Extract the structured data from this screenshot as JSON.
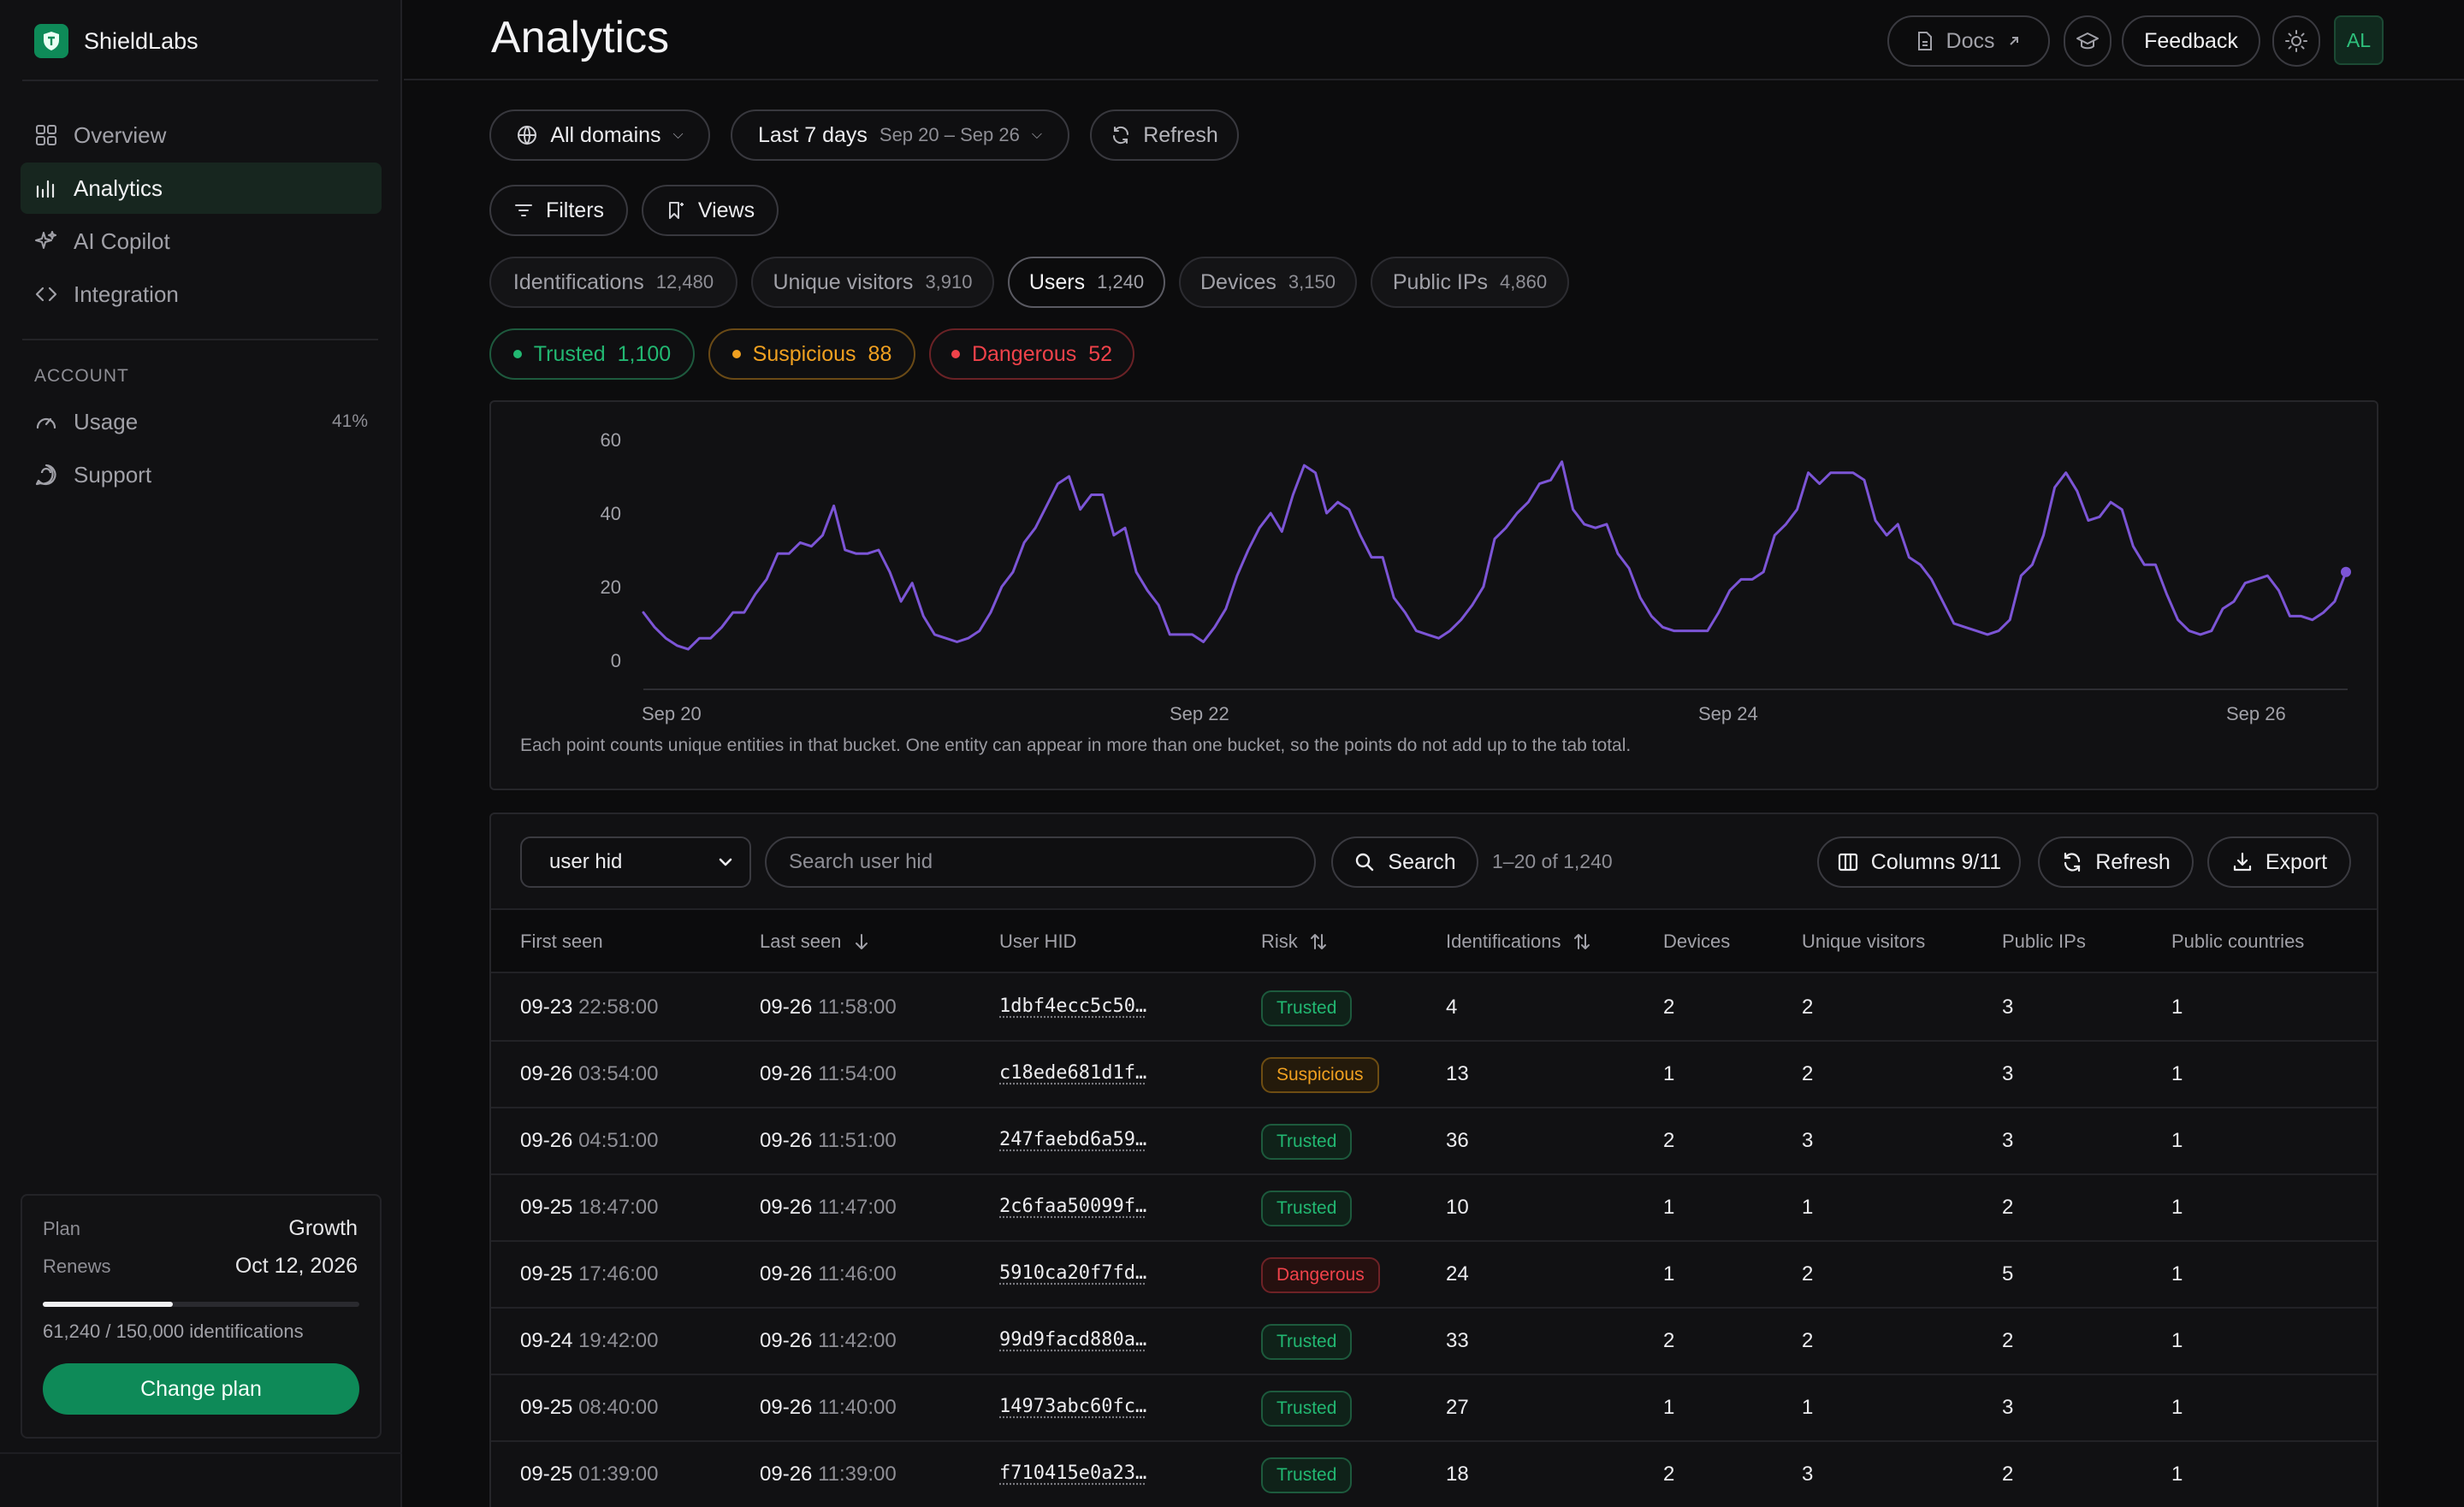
{
  "brand": {
    "name": "ShieldLabs"
  },
  "sidebar": {
    "items": [
      {
        "label": "Overview",
        "icon": "grid-icon"
      },
      {
        "label": "Analytics",
        "icon": "bar-chart-icon",
        "active": true
      },
      {
        "label": "AI Copilot",
        "icon": "sparkle-icon"
      },
      {
        "label": "Integration",
        "icon": "code-icon"
      }
    ],
    "account_label": "ACCOUNT",
    "account_items": [
      {
        "label": "Usage",
        "icon": "gauge-icon",
        "value": "41%"
      },
      {
        "label": "Support",
        "icon": "chat-icon"
      }
    ],
    "plan": {
      "plan_label": "Plan",
      "plan_value": "Growth",
      "renews_label": "Renews",
      "renews_value": "Oct 12, 2026",
      "usage_text": "61,240 / 150,000 identifications",
      "usage_fraction": 0.41,
      "button": "Change plan"
    }
  },
  "header": {
    "title": "Analytics",
    "docs": "Docs",
    "feedback": "Feedback",
    "avatar": "AL"
  },
  "filters": {
    "domains": "All domains",
    "range": "Last 7 days",
    "range_sub": "Sep 20 – Sep 26",
    "refresh": "Refresh",
    "filters": "Filters",
    "views": "Views"
  },
  "tabs": [
    {
      "label": "Identifications",
      "count": "12,480"
    },
    {
      "label": "Unique visitors",
      "count": "3,910"
    },
    {
      "label": "Users",
      "count": "1,240",
      "active": true
    },
    {
      "label": "Devices",
      "count": "3,150"
    },
    {
      "label": "Public IPs",
      "count": "4,860"
    }
  ],
  "risk_filters": [
    {
      "label": "Trusted",
      "count": "1,100"
    },
    {
      "label": "Suspicious",
      "count": "88"
    },
    {
      "label": "Dangerous",
      "count": "52"
    }
  ],
  "colors": {
    "accent": "#0e8a58",
    "line": "#7c55d6",
    "trusted": "#22b872",
    "suspicious": "#f0a020",
    "dangerous": "#f0424a"
  },
  "chart_data": {
    "type": "line",
    "ylim": [
      0,
      60
    ],
    "yticks": [
      "0",
      "20",
      "40",
      "60"
    ],
    "xticks": [
      "Sep 20",
      "Sep 22",
      "Sep 24",
      "Sep 26"
    ],
    "note": "Each point counts unique entities in that bucket. One entity can appear in more than one bucket, so the points do not add up to the tab total.",
    "series": [
      {
        "values": [
          13,
          9,
          6,
          4,
          3,
          6,
          6,
          9,
          13,
          13,
          18,
          22,
          29,
          29,
          32,
          31,
          34,
          42,
          30,
          29,
          29,
          30,
          24,
          16,
          21,
          12,
          7,
          6,
          5,
          6,
          8,
          13,
          20,
          24,
          32,
          36,
          42,
          48,
          50,
          41,
          45,
          45,
          34,
          36,
          24,
          19,
          15,
          7,
          7,
          7,
          5,
          9,
          14,
          23,
          30,
          36,
          40,
          35,
          45,
          53,
          51,
          40,
          43,
          41,
          34,
          28,
          28,
          17,
          13,
          8,
          7,
          6,
          8,
          11,
          15,
          20,
          33,
          36,
          40,
          43,
          48,
          49,
          54,
          41,
          37,
          36,
          37,
          29,
          25,
          17,
          12,
          9,
          8,
          8,
          8,
          8,
          13,
          19,
          22,
          22,
          24,
          34,
          37,
          41,
          51,
          48,
          51,
          51,
          51,
          49,
          38,
          34,
          37,
          28,
          26,
          22,
          16,
          10,
          9,
          8,
          7,
          8,
          11,
          23,
          26,
          34,
          47,
          51,
          46,
          38,
          39,
          43,
          41,
          31,
          26,
          26,
          18,
          11,
          8,
          7,
          8,
          14,
          16,
          21,
          22,
          23,
          19,
          12,
          12,
          11,
          13,
          16,
          24
        ]
      }
    ]
  },
  "table": {
    "filter_field": "user hid",
    "search_placeholder": "Search user hid",
    "search_button": "Search",
    "range": "1–20 of 1,240",
    "columns_button": "Columns 9/11",
    "refresh_button": "Refresh",
    "export_button": "Export",
    "headers": [
      "First seen",
      "Last seen",
      "User HID",
      "Risk",
      "Identifications",
      "Devices",
      "Unique visitors",
      "Public IPs",
      "Public countries"
    ],
    "rows": [
      {
        "first_date": "09-23",
        "first_time": "22:58:00",
        "last_date": "09-26",
        "last_time": "11:58:00",
        "hid": "1dbf4ecc5c50…",
        "risk": "Trusted",
        "ident": "4",
        "devices": "2",
        "visitors": "2",
        "ips": "3",
        "countries": "1"
      },
      {
        "first_date": "09-26",
        "first_time": "03:54:00",
        "last_date": "09-26",
        "last_time": "11:54:00",
        "hid": "c18ede681d1f…",
        "risk": "Suspicious",
        "ident": "13",
        "devices": "1",
        "visitors": "2",
        "ips": "3",
        "countries": "1"
      },
      {
        "first_date": "09-26",
        "first_time": "04:51:00",
        "last_date": "09-26",
        "last_time": "11:51:00",
        "hid": "247faebd6a59…",
        "risk": "Trusted",
        "ident": "36",
        "devices": "2",
        "visitors": "3",
        "ips": "3",
        "countries": "1"
      },
      {
        "first_date": "09-25",
        "first_time": "18:47:00",
        "last_date": "09-26",
        "last_time": "11:47:00",
        "hid": "2c6faa50099f…",
        "risk": "Trusted",
        "ident": "10",
        "devices": "1",
        "visitors": "1",
        "ips": "2",
        "countries": "1"
      },
      {
        "first_date": "09-25",
        "first_time": "17:46:00",
        "last_date": "09-26",
        "last_time": "11:46:00",
        "hid": "5910ca20f7fd…",
        "risk": "Dangerous",
        "ident": "24",
        "devices": "1",
        "visitors": "2",
        "ips": "5",
        "countries": "1"
      },
      {
        "first_date": "09-24",
        "first_time": "19:42:00",
        "last_date": "09-26",
        "last_time": "11:42:00",
        "hid": "99d9facd880a…",
        "risk": "Trusted",
        "ident": "33",
        "devices": "2",
        "visitors": "2",
        "ips": "2",
        "countries": "1"
      },
      {
        "first_date": "09-25",
        "first_time": "08:40:00",
        "last_date": "09-26",
        "last_time": "11:40:00",
        "hid": "14973abc60fc…",
        "risk": "Trusted",
        "ident": "27",
        "devices": "1",
        "visitors": "1",
        "ips": "3",
        "countries": "1"
      },
      {
        "first_date": "09-25",
        "first_time": "01:39:00",
        "last_date": "09-26",
        "last_time": "11:39:00",
        "hid": "f710415e0a23…",
        "risk": "Trusted",
        "ident": "18",
        "devices": "2",
        "visitors": "3",
        "ips": "2",
        "countries": "1"
      }
    ]
  }
}
